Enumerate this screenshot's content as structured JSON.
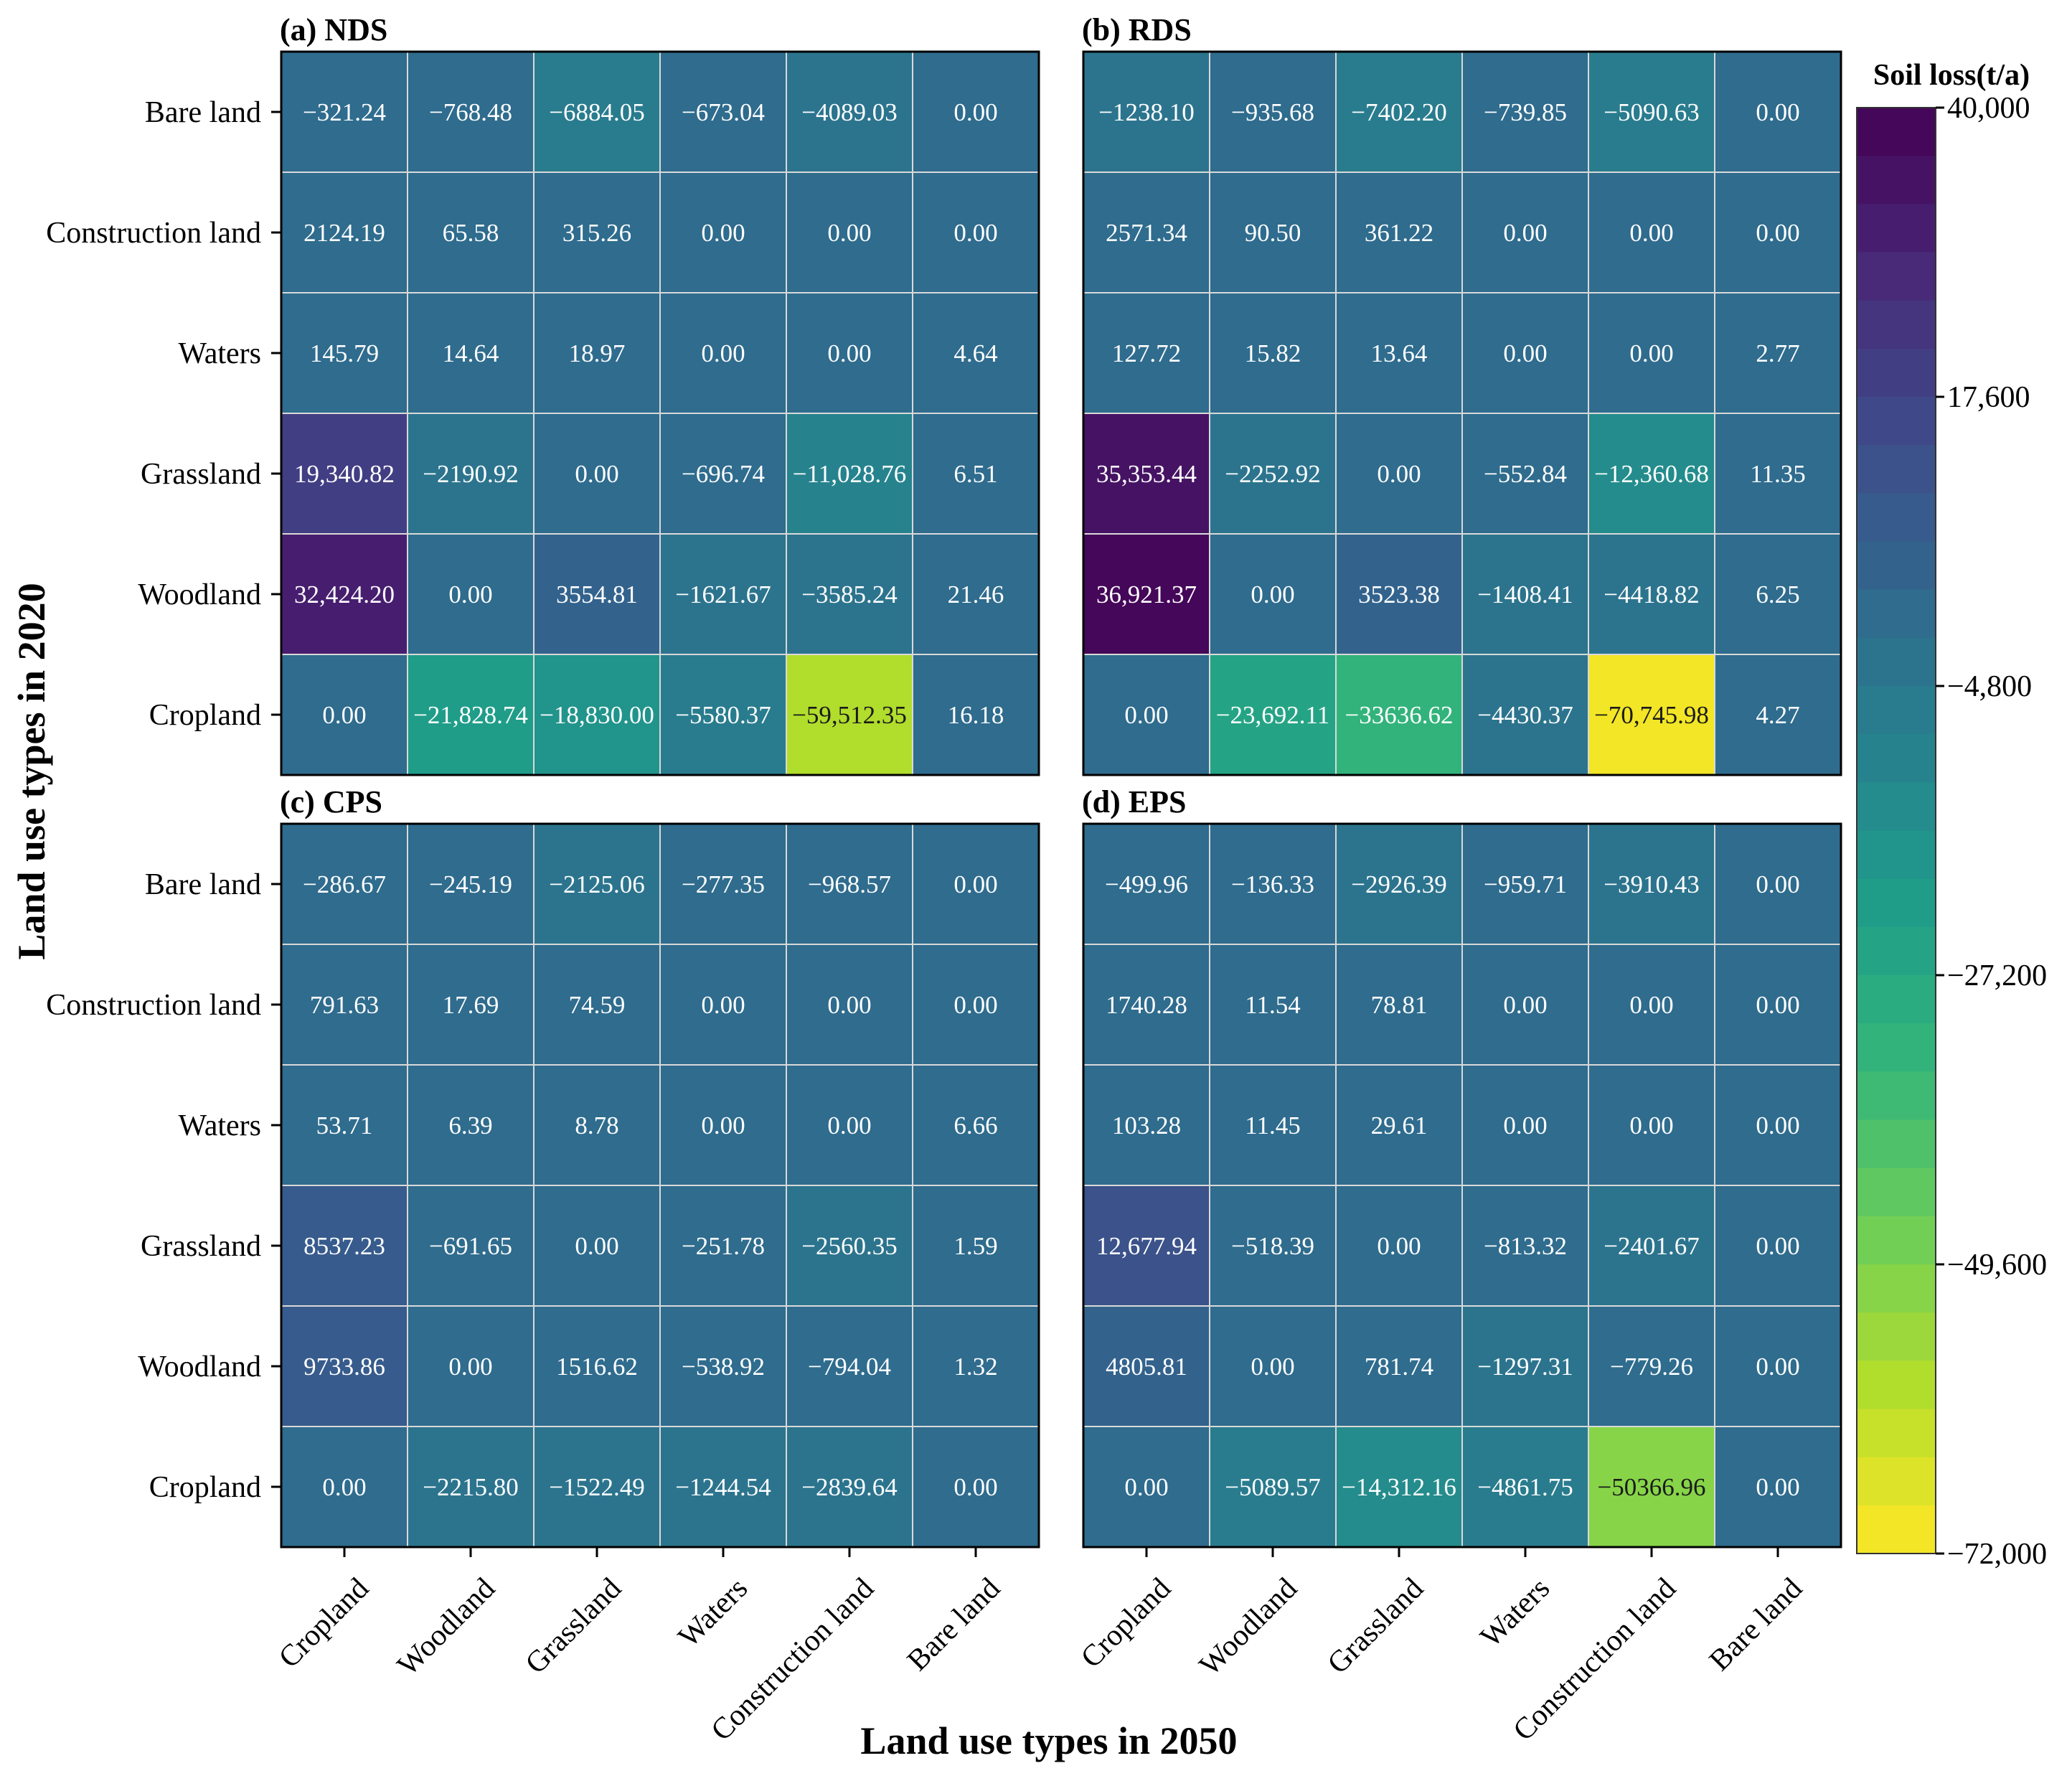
{
  "chart_data": {
    "type": "heatmap",
    "x_axis_label": "Land use types in 2050",
    "y_axis_label": "Land use types in 2020",
    "rows": [
      "Bare land",
      "Construction land",
      "Waters",
      "Grassland",
      "Woodland",
      "Cropland"
    ],
    "columns": [
      "Cropland",
      "Woodland",
      "Grassland",
      "Waters",
      "Construction land",
      "Bare land"
    ],
    "colorbar": {
      "title": "Soil loss(t/a)",
      "min": -72000,
      "max": 40000,
      "ticks": [
        40000,
        17600,
        -4800,
        -27200,
        -49600,
        -72000
      ],
      "tick_labels": [
        "40,000",
        "17,600",
        "−4,800",
        "−27,200",
        "−49,600",
        "−72,000"
      ],
      "levels": 30,
      "colormap": "viridis (reversed: max = dark purple, min = yellow)"
    },
    "panels": [
      {
        "id": "a",
        "title": "(a) NDS",
        "values": [
          [
            -321.24,
            -768.48,
            -6884.05,
            -673.04,
            -4089.03,
            0
          ],
          [
            2124.19,
            65.58,
            315.26,
            0,
            0,
            0
          ],
          [
            145.79,
            14.64,
            18.97,
            0,
            0,
            4.64
          ],
          [
            19340.82,
            -2190.92,
            0,
            -696.74,
            -11028.76,
            6.51
          ],
          [
            32424.2,
            0,
            3554.81,
            -1621.67,
            -3585.24,
            21.46
          ],
          [
            0,
            -21828.74,
            -18830,
            -5580.37,
            -59512.35,
            16.18
          ]
        ],
        "labels": [
          [
            "−321.24",
            "−768.48",
            "−6884.05",
            "−673.04",
            "−4089.03",
            "0.00"
          ],
          [
            "2124.19",
            "65.58",
            "315.26",
            "0.00",
            "0.00",
            "0.00"
          ],
          [
            "145.79",
            "14.64",
            "18.97",
            "0.00",
            "0.00",
            "4.64"
          ],
          [
            "19,340.82",
            "−2190.92",
            "0.00",
            "−696.74",
            "−11,028.76",
            "6.51"
          ],
          [
            "32,424.20",
            "0.00",
            "3554.81",
            "−1621.67",
            "−3585.24",
            "21.46"
          ],
          [
            "0.00",
            "−21,828.74",
            "−18,830.00",
            "−5580.37",
            "−59,512.35",
            "16.18"
          ]
        ]
      },
      {
        "id": "b",
        "title": "(b) RDS",
        "values": [
          [
            -1238.1,
            -935.68,
            -7402.2,
            -739.85,
            -5090.63,
            0
          ],
          [
            2571.34,
            90.5,
            361.22,
            0,
            0,
            0
          ],
          [
            127.72,
            15.82,
            13.64,
            0,
            0,
            2.77
          ],
          [
            35353.44,
            -2252.92,
            0,
            -552.84,
            -12360.68,
            11.35
          ],
          [
            36921.37,
            0,
            3523.38,
            -1408.41,
            -4418.82,
            6.25
          ],
          [
            0,
            -23692.11,
            -33636.62,
            -4430.37,
            -70745.98,
            4.27
          ]
        ],
        "labels": [
          [
            "−1238.10",
            "−935.68",
            "−7402.20",
            "−739.85",
            "−5090.63",
            "0.00"
          ],
          [
            "2571.34",
            "90.50",
            "361.22",
            "0.00",
            "0.00",
            "0.00"
          ],
          [
            "127.72",
            "15.82",
            "13.64",
            "0.00",
            "0.00",
            "2.77"
          ],
          [
            "35,353.44",
            "−2252.92",
            "0.00",
            "−552.84",
            "−12,360.68",
            "11.35"
          ],
          [
            "36,921.37",
            "0.00",
            "3523.38",
            "−1408.41",
            "−4418.82",
            "6.25"
          ],
          [
            "0.00",
            "−23,692.11",
            "−33636.62",
            "−4430.37",
            "−70,745.98",
            "4.27"
          ]
        ]
      },
      {
        "id": "c",
        "title": "(c) CPS",
        "values": [
          [
            -286.67,
            -245.19,
            -2125.06,
            -277.35,
            -968.57,
            0
          ],
          [
            791.63,
            17.69,
            74.59,
            0,
            0,
            0
          ],
          [
            53.71,
            6.39,
            8.78,
            0,
            0,
            6.66
          ],
          [
            8537.23,
            -691.65,
            0,
            -251.78,
            -2560.35,
            1.59
          ],
          [
            9733.86,
            0,
            1516.62,
            -538.92,
            -794.04,
            1.32
          ],
          [
            0,
            -2215.8,
            -1522.49,
            -1244.54,
            -2839.64,
            0
          ]
        ],
        "labels": [
          [
            "−286.67",
            "−245.19",
            "−2125.06",
            "−277.35",
            "−968.57",
            "0.00"
          ],
          [
            "791.63",
            "17.69",
            "74.59",
            "0.00",
            "0.00",
            "0.00"
          ],
          [
            "53.71",
            "6.39",
            "8.78",
            "0.00",
            "0.00",
            "6.66"
          ],
          [
            "8537.23",
            "−691.65",
            "0.00",
            "−251.78",
            "−2560.35",
            "1.59"
          ],
          [
            "9733.86",
            "0.00",
            "1516.62",
            "−538.92",
            "−794.04",
            "1.32"
          ],
          [
            "0.00",
            "−2215.80",
            "−1522.49",
            "−1244.54",
            "−2839.64",
            "0.00"
          ]
        ]
      },
      {
        "id": "d",
        "title": "(d) EPS",
        "values": [
          [
            -499.96,
            -136.33,
            -2926.39,
            -959.71,
            -3910.43,
            0
          ],
          [
            1740.28,
            11.54,
            78.81,
            0,
            0,
            0
          ],
          [
            103.28,
            11.45,
            29.61,
            0,
            0,
            0
          ],
          [
            12677.94,
            -518.39,
            0,
            -813.32,
            -2401.67,
            0
          ],
          [
            4805.81,
            0,
            781.74,
            -1297.31,
            -779.26,
            0
          ],
          [
            0,
            -5089.57,
            -14312.16,
            -4861.75,
            -50366.96,
            0
          ]
        ],
        "labels": [
          [
            "−499.96",
            "−136.33",
            "−2926.39",
            "−959.71",
            "−3910.43",
            "0.00"
          ],
          [
            "1740.28",
            "11.54",
            "78.81",
            "0.00",
            "0.00",
            "0.00"
          ],
          [
            "103.28",
            "11.45",
            "29.61",
            "0.00",
            "0.00",
            "0.00"
          ],
          [
            "12,677.94",
            "−518.39",
            "0.00",
            "−813.32",
            "−2401.67",
            "0.00"
          ],
          [
            "4805.81",
            "0.00",
            "781.74",
            "−1297.31",
            "−779.26",
            "0.00"
          ],
          [
            "0.00",
            "−5089.57",
            "−14,312.16",
            "−4861.75",
            "−50366.96",
            "0.00"
          ]
        ]
      }
    ]
  }
}
